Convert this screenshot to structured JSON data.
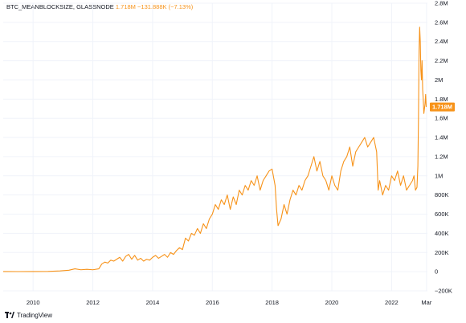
{
  "header": {
    "symbol": "BTC_MEANBLOCKSIZE, GLASSNODE",
    "value_text": "1.718M",
    "change_text": "−131.888K (−7.13%)"
  },
  "branding": {
    "logo_text": "TradingView"
  },
  "colors": {
    "series": "#f7931a",
    "badge": "#f7931a",
    "grid": "#f0f3fa",
    "text": "#131722"
  },
  "chart_data": {
    "type": "line",
    "title": "BTC_MEANBLOCKSIZE, GLASSNODE",
    "xlabel": "",
    "ylabel": "",
    "grid": true,
    "legend": "none",
    "xlim": [
      2009.0,
      2023.2
    ],
    "ylim": [
      -200000,
      2800000
    ],
    "x_ticks": [
      {
        "value": 2010,
        "label": "2010"
      },
      {
        "value": 2012,
        "label": "2012"
      },
      {
        "value": 2014,
        "label": "2014"
      },
      {
        "value": 2016,
        "label": "2016"
      },
      {
        "value": 2018,
        "label": "2018"
      },
      {
        "value": 2020,
        "label": "2020"
      },
      {
        "value": 2022,
        "label": "2022"
      },
      {
        "value": 2023.17,
        "label": "Mar"
      }
    ],
    "y_ticks": [
      {
        "value": -200000,
        "label": "−200K"
      },
      {
        "value": 0,
        "label": "0"
      },
      {
        "value": 200000,
        "label": "200K"
      },
      {
        "value": 400000,
        "label": "400K"
      },
      {
        "value": 600000,
        "label": "600K"
      },
      {
        "value": 800000,
        "label": "800K"
      },
      {
        "value": 1000000,
        "label": "1M"
      },
      {
        "value": 1200000,
        "label": "1.2M"
      },
      {
        "value": 1400000,
        "label": "1.4M"
      },
      {
        "value": 1600000,
        "label": "1.6M"
      },
      {
        "value": 1800000,
        "label": "1.8M"
      },
      {
        "value": 2000000,
        "label": "2M"
      },
      {
        "value": 2200000,
        "label": "2.2M"
      },
      {
        "value": 2400000,
        "label": "2.4M"
      },
      {
        "value": 2600000,
        "label": "2.6M"
      },
      {
        "value": 2800000,
        "label": "2.8M"
      }
    ],
    "last_value": {
      "value": 1718000,
      "label": "1.718M"
    },
    "series": [
      {
        "name": "BTC_MEANBLOCKSIZE",
        "color": "#f7931a",
        "points": [
          [
            2009.0,
            2000
          ],
          [
            2009.5,
            1000
          ],
          [
            2010.0,
            1500
          ],
          [
            2010.5,
            3000
          ],
          [
            2010.9,
            8000
          ],
          [
            2011.2,
            15000
          ],
          [
            2011.4,
            30000
          ],
          [
            2011.6,
            20000
          ],
          [
            2011.8,
            25000
          ],
          [
            2012.0,
            20000
          ],
          [
            2012.2,
            30000
          ],
          [
            2012.3,
            80000
          ],
          [
            2012.4,
            100000
          ],
          [
            2012.5,
            90000
          ],
          [
            2012.6,
            120000
          ],
          [
            2012.7,
            110000
          ],
          [
            2012.8,
            130000
          ],
          [
            2012.9,
            150000
          ],
          [
            2013.0,
            110000
          ],
          [
            2013.1,
            160000
          ],
          [
            2013.2,
            180000
          ],
          [
            2013.3,
            130000
          ],
          [
            2013.4,
            170000
          ],
          [
            2013.5,
            120000
          ],
          [
            2013.6,
            140000
          ],
          [
            2013.7,
            110000
          ],
          [
            2013.8,
            130000
          ],
          [
            2013.9,
            120000
          ],
          [
            2014.0,
            150000
          ],
          [
            2014.1,
            170000
          ],
          [
            2014.2,
            140000
          ],
          [
            2014.3,
            160000
          ],
          [
            2014.4,
            180000
          ],
          [
            2014.5,
            150000
          ],
          [
            2014.6,
            200000
          ],
          [
            2014.7,
            180000
          ],
          [
            2014.8,
            220000
          ],
          [
            2014.9,
            250000
          ],
          [
            2015.0,
            230000
          ],
          [
            2015.1,
            350000
          ],
          [
            2015.2,
            320000
          ],
          [
            2015.3,
            400000
          ],
          [
            2015.4,
            380000
          ],
          [
            2015.5,
            450000
          ],
          [
            2015.6,
            400000
          ],
          [
            2015.7,
            500000
          ],
          [
            2015.8,
            450000
          ],
          [
            2015.9,
            550000
          ],
          [
            2016.0,
            600000
          ],
          [
            2016.1,
            700000
          ],
          [
            2016.2,
            650000
          ],
          [
            2016.3,
            750000
          ],
          [
            2016.4,
            700000
          ],
          [
            2016.5,
            800000
          ],
          [
            2016.6,
            650000
          ],
          [
            2016.7,
            780000
          ],
          [
            2016.8,
            700000
          ],
          [
            2016.9,
            850000
          ],
          [
            2017.0,
            800000
          ],
          [
            2017.1,
            900000
          ],
          [
            2017.2,
            850000
          ],
          [
            2017.3,
            950000
          ],
          [
            2017.4,
            900000
          ],
          [
            2017.5,
            1000000
          ],
          [
            2017.6,
            850000
          ],
          [
            2017.7,
            950000
          ],
          [
            2017.8,
            1000000
          ],
          [
            2017.9,
            1050000
          ],
          [
            2018.0,
            1070000
          ],
          [
            2018.1,
            900000
          ],
          [
            2018.15,
            650000
          ],
          [
            2018.2,
            480000
          ],
          [
            2018.3,
            550000
          ],
          [
            2018.4,
            700000
          ],
          [
            2018.5,
            600000
          ],
          [
            2018.6,
            750000
          ],
          [
            2018.7,
            850000
          ],
          [
            2018.8,
            800000
          ],
          [
            2018.9,
            900000
          ],
          [
            2019.0,
            850000
          ],
          [
            2019.1,
            950000
          ],
          [
            2019.2,
            1000000
          ],
          [
            2019.3,
            1100000
          ],
          [
            2019.4,
            1200000
          ],
          [
            2019.5,
            1050000
          ],
          [
            2019.6,
            1150000
          ],
          [
            2019.7,
            1000000
          ],
          [
            2019.8,
            950000
          ],
          [
            2019.9,
            850000
          ],
          [
            2020.0,
            1000000
          ],
          [
            2020.1,
            900000
          ],
          [
            2020.2,
            850000
          ],
          [
            2020.3,
            1050000
          ],
          [
            2020.4,
            1150000
          ],
          [
            2020.5,
            1200000
          ],
          [
            2020.6,
            1300000
          ],
          [
            2020.7,
            1100000
          ],
          [
            2020.8,
            1250000
          ],
          [
            2020.9,
            1300000
          ],
          [
            2021.0,
            1350000
          ],
          [
            2021.1,
            1400000
          ],
          [
            2021.2,
            1300000
          ],
          [
            2021.3,
            1350000
          ],
          [
            2021.4,
            1400000
          ],
          [
            2021.5,
            1250000
          ],
          [
            2021.55,
            850000
          ],
          [
            2021.6,
            950000
          ],
          [
            2021.7,
            800000
          ],
          [
            2021.8,
            900000
          ],
          [
            2021.9,
            850000
          ],
          [
            2022.0,
            1000000
          ],
          [
            2022.1,
            950000
          ],
          [
            2022.2,
            1050000
          ],
          [
            2022.3,
            900000
          ],
          [
            2022.4,
            1000000
          ],
          [
            2022.5,
            850000
          ],
          [
            2022.6,
            900000
          ],
          [
            2022.7,
            950000
          ],
          [
            2022.75,
            1000000
          ],
          [
            2022.8,
            850000
          ],
          [
            2022.85,
            880000
          ],
          [
            2022.88,
            1100000
          ],
          [
            2022.9,
            1600000
          ],
          [
            2022.92,
            2300000
          ],
          [
            2022.94,
            2550000
          ],
          [
            2022.96,
            2400000
          ],
          [
            2022.98,
            2100000
          ],
          [
            2023.0,
            2000000
          ],
          [
            2023.02,
            2200000
          ],
          [
            2023.04,
            1900000
          ],
          [
            2023.06,
            1800000
          ],
          [
            2023.08,
            1650000
          ],
          [
            2023.1,
            1700000
          ],
          [
            2023.12,
            1750000
          ],
          [
            2023.14,
            1850000
          ],
          [
            2023.16,
            1718000
          ]
        ]
      }
    ]
  }
}
